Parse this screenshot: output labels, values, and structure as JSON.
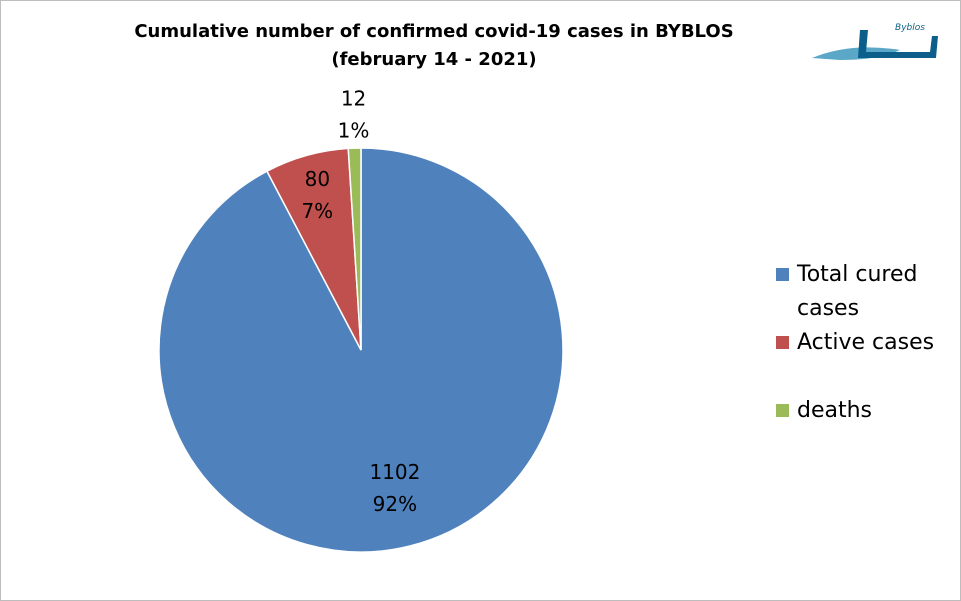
{
  "chart_data": {
    "type": "pie",
    "title": "Cumulative number of confirmed covid-19 cases in BYBLOS",
    "subtitle": "(february  14 - 2021)",
    "logo_text": "Byblos",
    "categories": [
      "Total cured cases",
      "Active cases",
      "deaths"
    ],
    "values": [
      1102,
      80,
      12
    ],
    "percent_labels": [
      "92%",
      "7%",
      "1%"
    ],
    "colors": [
      "#4f81bd",
      "#c0504d",
      "#9bbb59"
    ],
    "legend": "right"
  }
}
